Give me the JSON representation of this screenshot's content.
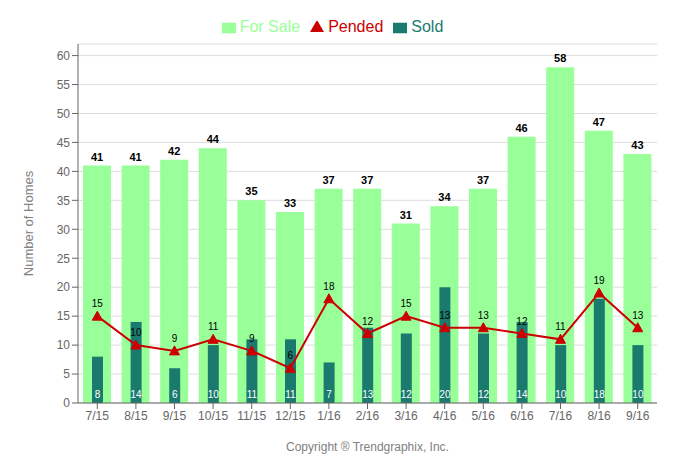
{
  "chart_data": {
    "type": "bar",
    "xlabel": "Copyright ® Trendgraphix, Inc.",
    "ylabel": "Number of Homes",
    "categories": [
      "7/15",
      "8/15",
      "9/15",
      "10/15",
      "11/15",
      "12/15",
      "1/16",
      "2/16",
      "3/16",
      "4/16",
      "5/16",
      "6/16",
      "7/16",
      "8/16",
      "9/16"
    ],
    "series": [
      {
        "name": "For Sale",
        "type": "bar",
        "color": "#99ff99",
        "values": [
          41,
          41,
          42,
          44,
          35,
          33,
          37,
          37,
          31,
          34,
          37,
          46,
          58,
          47,
          43
        ]
      },
      {
        "name": "Sold",
        "type": "bar",
        "color": "#1a7a6e",
        "values": [
          8,
          14,
          6,
          10,
          11,
          11,
          7,
          13,
          12,
          20,
          12,
          14,
          10,
          18,
          10
        ]
      },
      {
        "name": "Pended",
        "type": "line",
        "color": "#cc0000",
        "marker": "triangle",
        "values": [
          15,
          10,
          9,
          11,
          9,
          6,
          18,
          12,
          15,
          13,
          13,
          12,
          11,
          19,
          13
        ]
      }
    ],
    "ylim": [
      0,
      62
    ],
    "yticks": [
      0,
      5,
      10,
      15,
      20,
      25,
      30,
      35,
      40,
      45,
      50,
      55,
      60
    ],
    "grid": true,
    "legend": "top",
    "data_labels": true
  }
}
